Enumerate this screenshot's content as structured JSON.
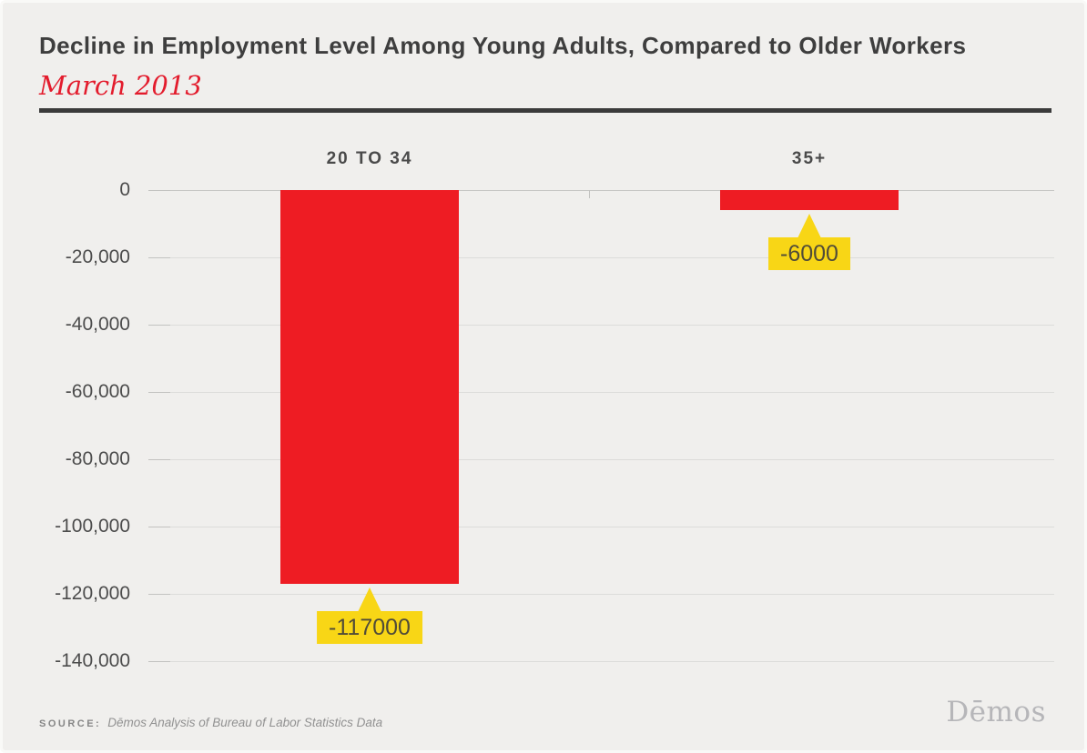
{
  "header": {
    "title": "Decline in Employment Level Among Young Adults, Compared to Older Workers",
    "subtitle": "March 2013"
  },
  "chart_data": {
    "type": "bar",
    "title": "Decline in Employment Level Among Young Adults, Compared to Older Workers",
    "subtitle": "March 2013",
    "categories": [
      "20 TO 34",
      "35+"
    ],
    "values": [
      -117000,
      -6000
    ],
    "data_labels": [
      "-117000",
      "-6000"
    ],
    "xlabel": "",
    "ylabel": "",
    "ylim": [
      -140000,
      0
    ],
    "yticks": [
      0,
      -20000,
      -40000,
      -60000,
      -80000,
      -100000,
      -120000,
      -140000
    ],
    "ytick_labels": [
      "0",
      "-20,000",
      "-40,000",
      "-60,000",
      "-80,000",
      "-100,000",
      "-120,000",
      "-140,000"
    ],
    "grid": true,
    "legend_position": "none",
    "bar_color": "#ee1c23",
    "callout_color": "#f8d616"
  },
  "footer": {
    "source_label": "SOURCE:",
    "source_text": "Dēmos Analysis of Bureau of Labor Statistics Data",
    "logo": "Dēmos"
  },
  "colors": {
    "background": "#f0efed",
    "accent_red": "#e31c2d",
    "title_text": "#3e3e3e",
    "bar": "#ee1c23",
    "callout": "#f8d616"
  }
}
